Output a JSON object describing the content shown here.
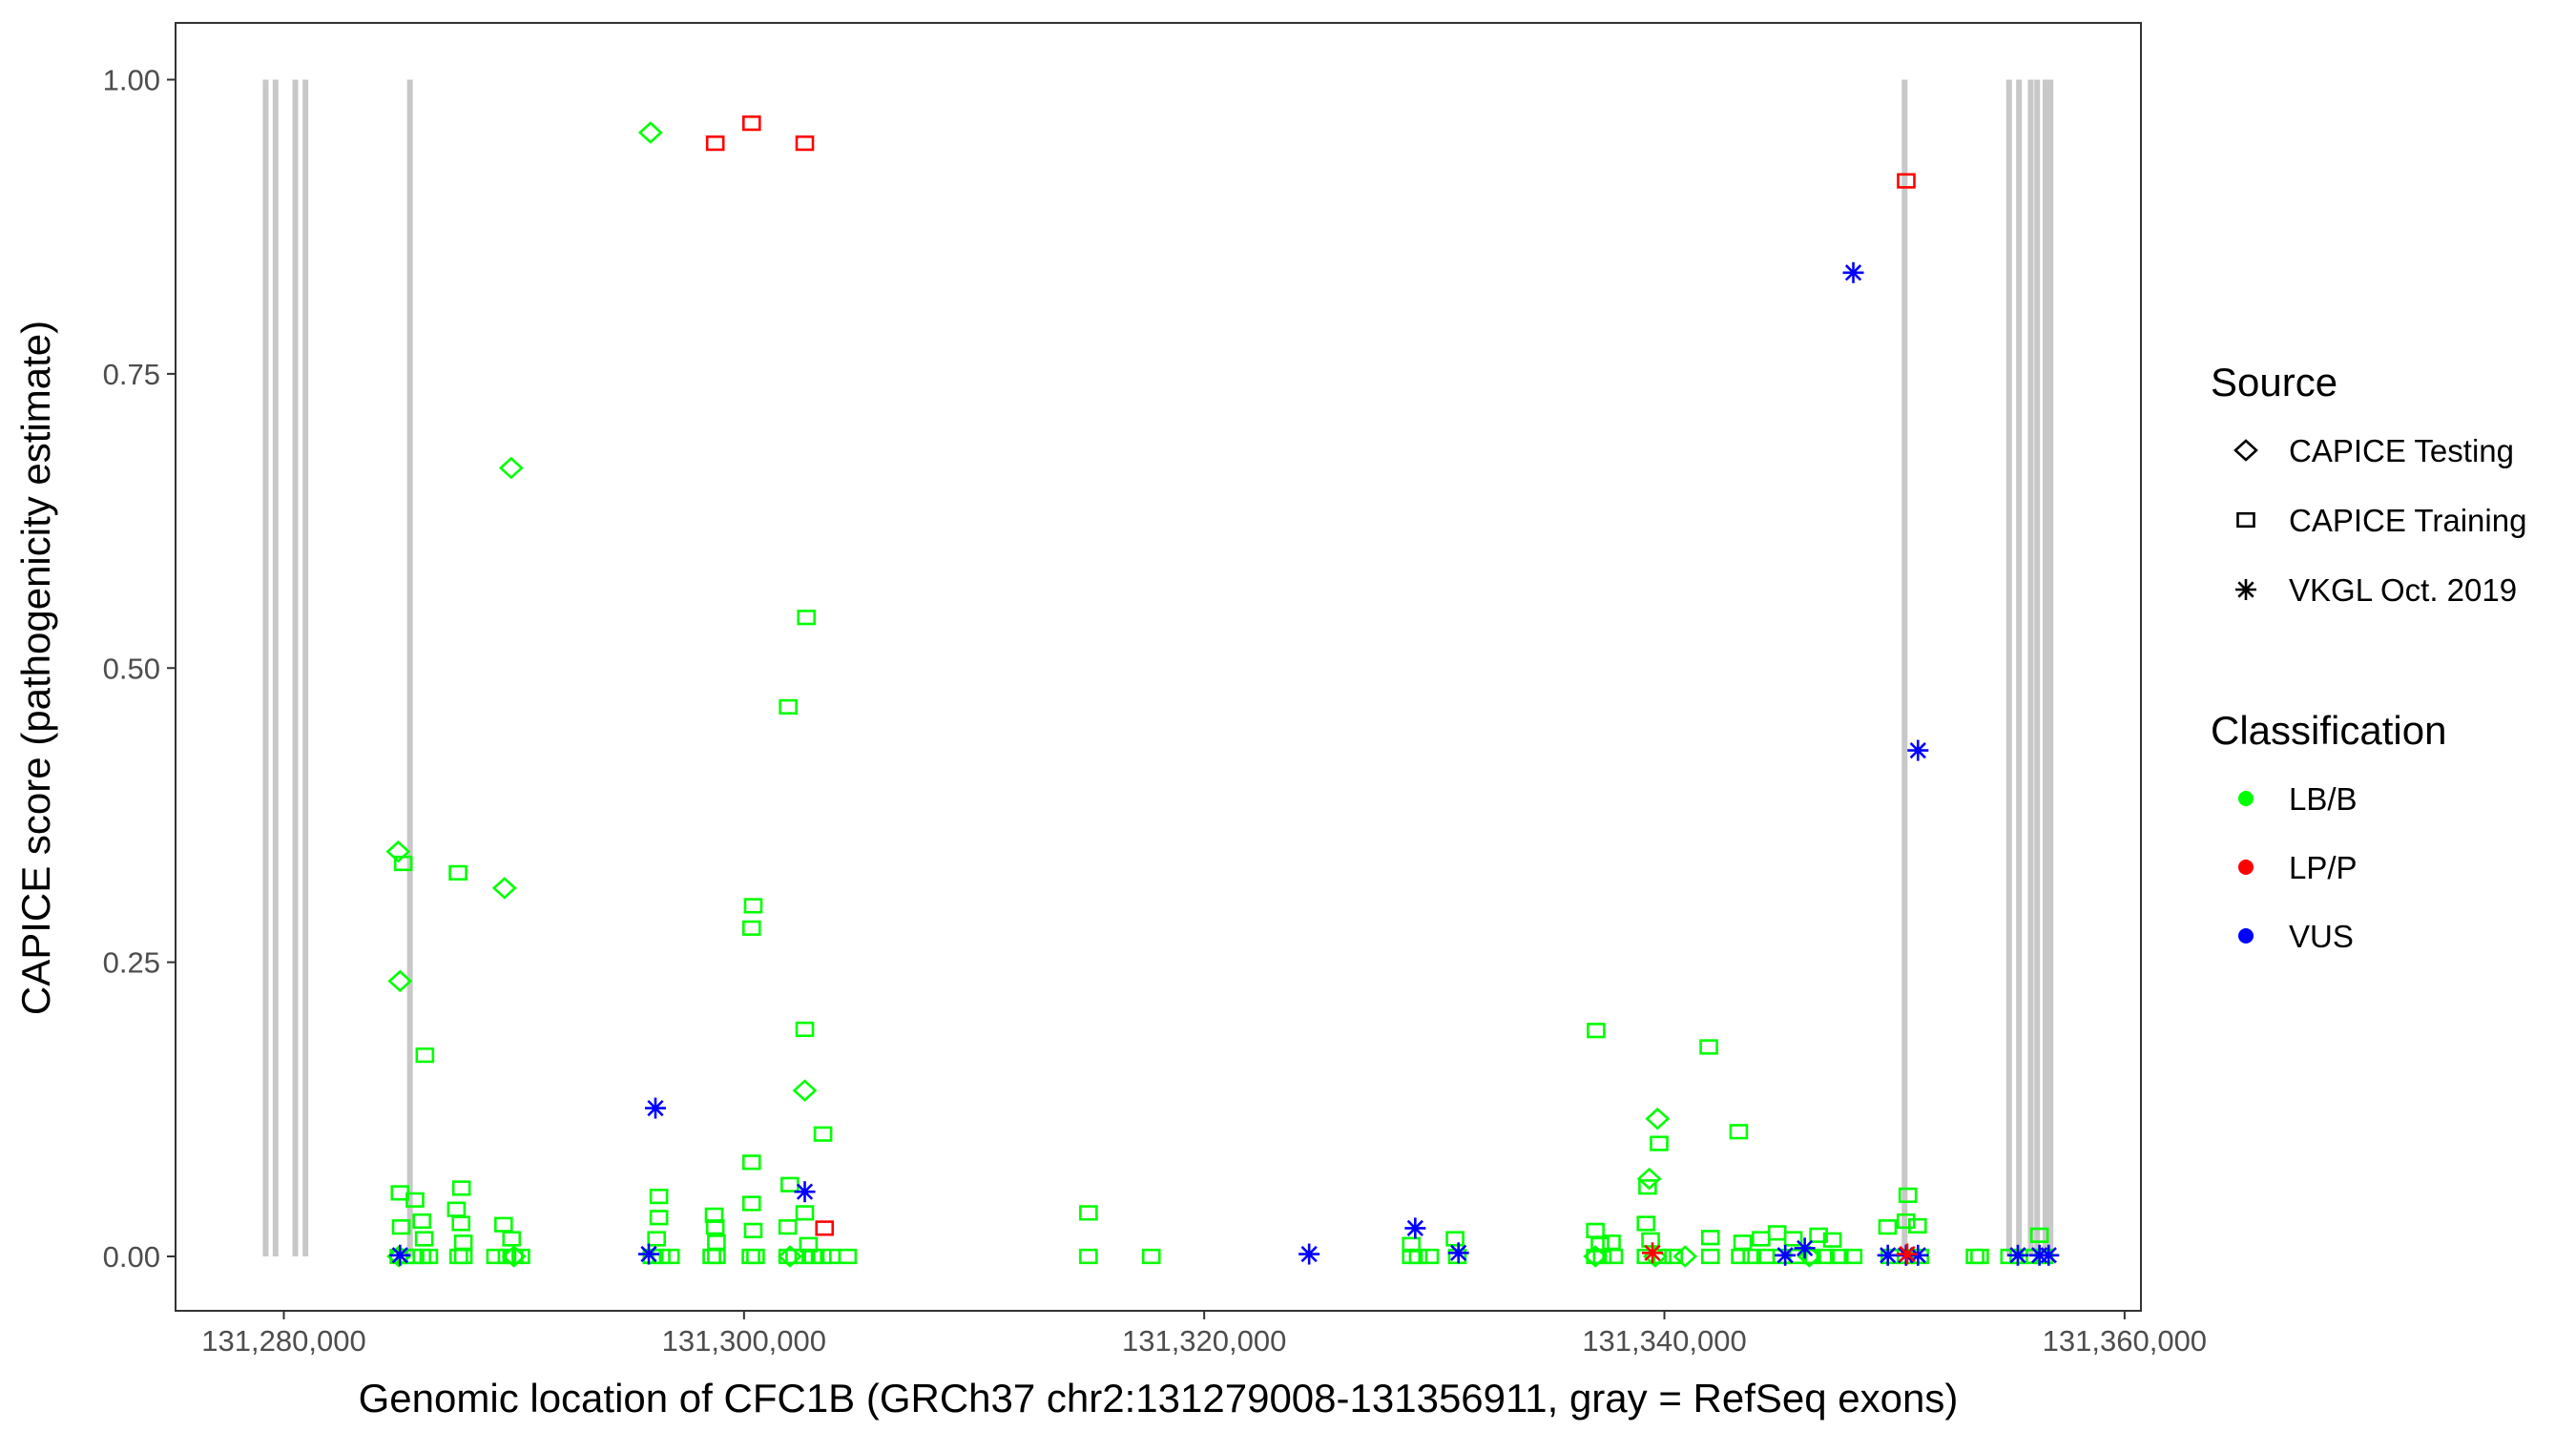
{
  "chart_data": {
    "type": "scatter",
    "xlabel": "Genomic location of CFC1B (GRCh37 chr2:131279008-131356911, gray = RefSeq exons)",
    "ylabel": "CAPICE score (pathogenicity estimate)",
    "xlim": [
      131276000,
      131359000
    ],
    "ylim": [
      -0.045,
      1.05
    ],
    "x_ticks": [
      131280000,
      131300000,
      131320000,
      131340000,
      131360000
    ],
    "x_tick_labels": [
      "131,280,000",
      "131,300,000",
      "131,320,000",
      "131,340,000",
      "131,360,000"
    ],
    "y_ticks": [
      0,
      0.25,
      0.5,
      0.75,
      1.0
    ],
    "y_tick_labels": [
      "0.00",
      "0.25",
      "0.50",
      "0.75",
      "1.00"
    ],
    "grid": false,
    "legend_placement": "right",
    "exon_color": "#c8c8c8",
    "exons": [
      131279210,
      131279640,
      131280500,
      131280940,
      131285480,
      131350440,
      131354980,
      131355410,
      131355920,
      131356200,
      131356560,
      131356780
    ],
    "legend": {
      "source_title": "Source",
      "sources": [
        {
          "name": "CAPICE Testing",
          "shape": "diamond"
        },
        {
          "name": "CAPICE Training",
          "shape": "square"
        },
        {
          "name": "VKGL Oct. 2019",
          "shape": "asterisk"
        }
      ],
      "classification_title": "Classification",
      "classifications": [
        {
          "name": "LB/B",
          "color": "#00ff00"
        },
        {
          "name": "LP/P",
          "color": "#ff0000"
        },
        {
          "name": "VUS",
          "color": "#0000ff"
        }
      ]
    },
    "series": [
      {
        "source": "CAPICE Training",
        "classification": "LB/B",
        "points": [
          [
            131302710,
            0.543
          ],
          [
            131301920,
            0.467
          ],
          [
            131285190,
            0.334
          ],
          [
            131287570,
            0.326
          ],
          [
            131300400,
            0.298
          ],
          [
            131300330,
            0.279
          ],
          [
            131286130,
            0.171
          ],
          [
            131302640,
            0.193
          ],
          [
            131303430,
            0.104
          ],
          [
            131300330,
            0.08
          ],
          [
            131337030,
            0.192
          ],
          [
            131341930,
            0.178
          ],
          [
            131343230,
            0.106
          ],
          [
            131339770,
            0.096
          ],
          [
            131339270,
            0.059
          ],
          [
            131285050,
            0.054
          ],
          [
            131285700,
            0.048
          ],
          [
            131287720,
            0.058
          ],
          [
            131296300,
            0.051
          ],
          [
            131301990,
            0.061
          ],
          [
            131350580,
            0.052
          ],
          [
            131314970,
            0.037
          ],
          [
            131285100,
            0.025
          ],
          [
            131286000,
            0.03
          ],
          [
            131286100,
            0.015
          ],
          [
            131287500,
            0.04
          ],
          [
            131287700,
            0.028
          ],
          [
            131287800,
            0.012
          ],
          [
            131289550,
            0.027
          ],
          [
            131289900,
            0.015
          ],
          [
            131296300,
            0.033
          ],
          [
            131296200,
            0.015
          ],
          [
            131298700,
            0.035
          ],
          [
            131298750,
            0.025
          ],
          [
            131298800,
            0.012
          ],
          [
            131300330,
            0.045
          ],
          [
            131300400,
            0.022
          ],
          [
            131301900,
            0.025
          ],
          [
            131302640,
            0.037
          ],
          [
            131302800,
            0.01
          ],
          [
            131329000,
            0.01
          ],
          [
            131330900,
            0.015
          ],
          [
            131337000,
            0.022
          ],
          [
            131337200,
            0.01
          ],
          [
            131339200,
            0.028
          ],
          [
            131339400,
            0.014
          ],
          [
            131342000,
            0.016
          ],
          [
            131343400,
            0.012
          ],
          [
            131344200,
            0.015
          ],
          [
            131344900,
            0.02
          ],
          [
            131345600,
            0.015
          ],
          [
            131346700,
            0.018
          ],
          [
            131347300,
            0.014
          ],
          [
            131349700,
            0.025
          ],
          [
            131350500,
            0.03
          ],
          [
            131351000,
            0.026
          ],
          [
            131356300,
            0.018
          ],
          [
            131337700,
            0.012
          ],
          [
            131285000,
            0
          ],
          [
            131285300,
            0
          ],
          [
            131285700,
            0
          ],
          [
            131286000,
            0
          ],
          [
            131286300,
            0
          ],
          [
            131287600,
            0
          ],
          [
            131287800,
            0
          ],
          [
            131289200,
            0
          ],
          [
            131289700,
            0
          ],
          [
            131290000,
            0
          ],
          [
            131290300,
            0
          ],
          [
            131296000,
            0
          ],
          [
            131296400,
            0
          ],
          [
            131296800,
            0
          ],
          [
            131298600,
            0
          ],
          [
            131298800,
            0
          ],
          [
            131300300,
            0
          ],
          [
            131300500,
            0
          ],
          [
            131301900,
            0
          ],
          [
            131302200,
            0
          ],
          [
            131302600,
            0
          ],
          [
            131303000,
            0
          ],
          [
            131303400,
            0
          ],
          [
            131303800,
            0
          ],
          [
            131304500,
            0
          ],
          [
            131314970,
            0
          ],
          [
            131317700,
            0
          ],
          [
            131329000,
            0
          ],
          [
            131329300,
            0
          ],
          [
            131329800,
            0
          ],
          [
            131331000,
            0
          ],
          [
            131337000,
            0
          ],
          [
            131337300,
            0
          ],
          [
            131337800,
            0
          ],
          [
            131339200,
            0
          ],
          [
            131339900,
            0
          ],
          [
            131340400,
            0
          ],
          [
            131342000,
            0
          ],
          [
            131343300,
            0
          ],
          [
            131343800,
            0
          ],
          [
            131344400,
            0
          ],
          [
            131345100,
            0
          ],
          [
            131345800,
            0
          ],
          [
            131346400,
            0
          ],
          [
            131347000,
            0
          ],
          [
            131347600,
            0
          ],
          [
            131348200,
            0
          ],
          [
            131349800,
            0
          ],
          [
            131350500,
            0
          ],
          [
            131351100,
            0
          ],
          [
            131353500,
            0
          ],
          [
            131353700,
            0
          ],
          [
            131355000,
            0
          ],
          [
            131355400,
            0
          ],
          [
            131355900,
            0
          ],
          [
            131356500,
            0
          ]
        ]
      },
      {
        "source": "CAPICE Testing",
        "classification": "LB/B",
        "points": [
          [
            131295935,
            0.955
          ],
          [
            131289880,
            0.67
          ],
          [
            131284970,
            0.344
          ],
          [
            131289590,
            0.313
          ],
          [
            131285050,
            0.234
          ],
          [
            131302640,
            0.141
          ],
          [
            131339700,
            0.117
          ],
          [
            131339340,
            0.066
          ],
          [
            131285000,
            0
          ],
          [
            131290000,
            0
          ],
          [
            131302000,
            0
          ],
          [
            131337000,
            0
          ],
          [
            131339600,
            0
          ],
          [
            131340900,
            0
          ],
          [
            131346300,
            0
          ]
        ]
      },
      {
        "source": "CAPICE Training",
        "classification": "LP/P",
        "points": [
          [
            131298750,
            0.946
          ],
          [
            131300330,
            0.963
          ],
          [
            131302640,
            0.946
          ],
          [
            131350510,
            0.914
          ],
          [
            131303500,
            0.024
          ]
        ]
      },
      {
        "source": "VKGL Oct. 2019",
        "classification": "VUS",
        "points": [
          [
            131348210,
            0.836
          ],
          [
            131351020,
            0.43
          ],
          [
            131296150,
            0.126
          ],
          [
            131302640,
            0.055
          ],
          [
            131329170,
            0.024
          ],
          [
            131324560,
            0.002
          ],
          [
            131285050,
            0.001
          ],
          [
            131295860,
            0.002
          ],
          [
            131331050,
            0.003
          ],
          [
            131345250,
            0.001
          ],
          [
            131346100,
            0.007
          ],
          [
            131349710,
            0.001
          ],
          [
            131350500,
            0.001
          ],
          [
            131351020,
            0.001
          ],
          [
            131355360,
            0.001
          ],
          [
            131356300,
            0.001
          ],
          [
            131356700,
            0.001
          ]
        ]
      },
      {
        "source": "VKGL Oct. 2019",
        "classification": "LP/P",
        "points": [
          [
            131339480,
            0.003
          ],
          [
            131350550,
            0.002
          ]
        ]
      }
    ]
  }
}
